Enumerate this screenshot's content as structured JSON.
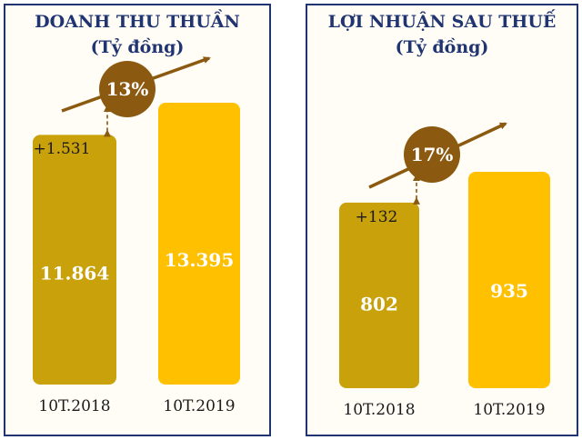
{
  "colors": {
    "border": "#1f3470",
    "title": "#1f3470",
    "bar_2018": "#c9a10a",
    "bar_2019": "#ffc000",
    "bubble": "#8b5a10",
    "arrow": "#8b5a10",
    "value_text": "#ffffff",
    "label_text": "#1a1a1a",
    "panel_bg": "#fffdf6"
  },
  "chart_data": [
    {
      "type": "bar",
      "title": "DOANH THU THUẦN",
      "subtitle": "(Tỷ đồng)",
      "categories": [
        "10T.2018",
        "10T.2019"
      ],
      "values": [
        11864,
        13395
      ],
      "value_labels": [
        "11.864",
        "13.395"
      ],
      "difference_label": "+1.531",
      "growth_label": "13%"
    },
    {
      "type": "bar",
      "title": "LỢI NHUẬN SAU THUẾ",
      "subtitle": "(Tỷ đồng)",
      "categories": [
        "10T.2018",
        "10T.2019"
      ],
      "values": [
        802,
        935
      ],
      "value_labels": [
        "802",
        "935"
      ],
      "difference_label": "+132",
      "growth_label": "17%"
    }
  ]
}
